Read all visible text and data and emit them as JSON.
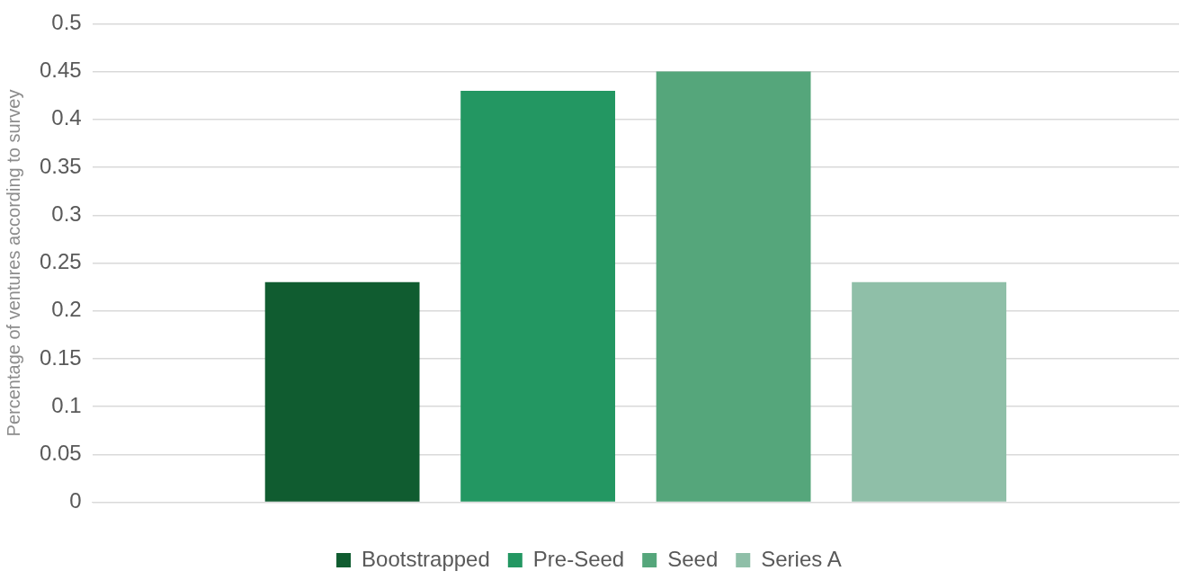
{
  "chart_data": {
    "type": "bar",
    "ylabel": "Percentage of ventures according to survey",
    "categories": [
      null
    ],
    "series": [
      {
        "name": "Bootstrapped",
        "color": "#105c30",
        "values": [
          0.23
        ]
      },
      {
        "name": "Pre-Seed",
        "color": "#239762",
        "values": [
          0.43
        ]
      },
      {
        "name": "Seed",
        "color": "#55a67b",
        "values": [
          0.45
        ]
      },
      {
        "name": "Series A",
        "color": "#8fbfa8",
        "values": [
          0.23
        ]
      }
    ],
    "ylim": [
      0,
      0.5
    ],
    "yticks": [
      0,
      0.05,
      0.1,
      0.15,
      0.2,
      0.25,
      0.3,
      0.35,
      0.4,
      0.45,
      0.5
    ],
    "grid": "y",
    "legend": "bottom"
  }
}
